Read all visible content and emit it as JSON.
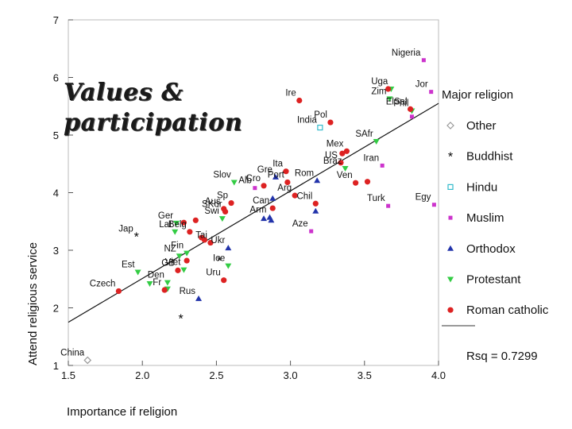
{
  "slide": {
    "title": "Values & participation"
  },
  "chart_data": {
    "type": "scatter",
    "xlabel": "Importance if religion",
    "ylabel": "Attend religious service",
    "xlim": [
      1.5,
      4.0
    ],
    "ylim": [
      1,
      7
    ],
    "xticks": [
      "1.5",
      "2.0",
      "2.5",
      "3.0",
      "3.5",
      "4.0"
    ],
    "yticks": [
      "1",
      "2",
      "3",
      "4",
      "5",
      "6",
      "7"
    ],
    "legend_title": "Major religion",
    "legend_position": "right",
    "fit_line": {
      "x": [
        1.5,
        4.0
      ],
      "y": [
        1.75,
        5.55
      ]
    },
    "rsq_label": "Rsq = 0.7299",
    "groups": [
      {
        "name": "Other",
        "color": "#999999",
        "marker": "diamond"
      },
      {
        "name": "Buddhist",
        "color": "#000000",
        "marker": "asterisk"
      },
      {
        "name": "Hindu",
        "color": "#33bbcc",
        "marker": "square-open"
      },
      {
        "name": "Muslim",
        "color": "#cc33cc",
        "marker": "square"
      },
      {
        "name": "Orthodox",
        "color": "#2233aa",
        "marker": "triangle"
      },
      {
        "name": "Protestant",
        "color": "#33cc44",
        "marker": "triangle-down"
      },
      {
        "name": "Roman catholic",
        "color": "#dd2222",
        "marker": "circle"
      }
    ],
    "points": [
      {
        "label": "China",
        "x": 1.63,
        "y": 1.09,
        "group": "Other"
      },
      {
        "label": "Jap",
        "x": 1.96,
        "y": 3.24,
        "group": "Buddhist"
      },
      {
        "label": "",
        "x": 2.26,
        "y": 1.82,
        "group": "Buddhist"
      },
      {
        "label": "",
        "x": 2.52,
        "y": 2.83,
        "group": "Buddhist"
      },
      {
        "label": "India",
        "x": 3.2,
        "y": 5.13,
        "group": "Hindu"
      },
      {
        "label": "Nigeria",
        "x": 3.9,
        "y": 6.3,
        "group": "Muslim"
      },
      {
        "label": "Jor",
        "x": 3.95,
        "y": 5.75,
        "group": "Muslim"
      },
      {
        "label": "",
        "x": 3.82,
        "y": 5.32,
        "group": "Muslim"
      },
      {
        "label": "Iran",
        "x": 3.62,
        "y": 4.47,
        "group": "Muslim"
      },
      {
        "label": "Turk",
        "x": 3.66,
        "y": 3.77,
        "group": "Muslim"
      },
      {
        "label": "Egy",
        "x": 3.97,
        "y": 3.79,
        "group": "Muslim"
      },
      {
        "label": "Alb",
        "x": 2.76,
        "y": 4.08,
        "group": "Muslim"
      },
      {
        "label": "Aze",
        "x": 3.14,
        "y": 3.33,
        "group": "Muslim"
      },
      {
        "label": "Rus",
        "x": 2.38,
        "y": 2.16,
        "group": "Orthodox"
      },
      {
        "label": "Ukr",
        "x": 2.58,
        "y": 3.04,
        "group": "Orthodox"
      },
      {
        "label": "",
        "x": 2.87,
        "y": 3.52,
        "group": "Orthodox"
      },
      {
        "label": "",
        "x": 2.82,
        "y": 3.55,
        "group": "Orthodox"
      },
      {
        "label": "Arm",
        "x": 2.86,
        "y": 3.57,
        "group": "Orthodox"
      },
      {
        "label": "Gre",
        "x": 2.9,
        "y": 4.27,
        "group": "Orthodox"
      },
      {
        "label": "Rom",
        "x": 3.18,
        "y": 4.21,
        "group": "Orthodox"
      },
      {
        "label": "",
        "x": 3.17,
        "y": 3.68,
        "group": "Orthodox"
      },
      {
        "label": "",
        "x": 2.88,
        "y": 3.9,
        "group": "Orthodox"
      },
      {
        "label": "Est",
        "x": 1.97,
        "y": 2.62,
        "group": "Protestant"
      },
      {
        "label": "",
        "x": 2.05,
        "y": 2.42,
        "group": "Protestant"
      },
      {
        "label": "Den",
        "x": 2.17,
        "y": 2.44,
        "group": "Protestant"
      },
      {
        "label": "",
        "x": 2.17,
        "y": 2.33,
        "group": "Protestant"
      },
      {
        "label": "Viet",
        "x": 2.28,
        "y": 2.66,
        "group": "Protestant"
      },
      {
        "label": "Lat",
        "x": 2.22,
        "y": 3.32,
        "group": "Protestant"
      },
      {
        "label": "Fin",
        "x": 2.3,
        "y": 2.95,
        "group": "Protestant"
      },
      {
        "label": "NZ",
        "x": 2.25,
        "y": 2.9,
        "group": "Protestant"
      },
      {
        "label": "Ice",
        "x": 2.58,
        "y": 2.73,
        "group": "Protestant"
      },
      {
        "label": "Swi",
        "x": 2.54,
        "y": 3.55,
        "group": "Protestant"
      },
      {
        "label": "Ger",
        "x": 2.23,
        "y": 3.47,
        "group": "Protestant"
      },
      {
        "label": "Slov",
        "x": 2.62,
        "y": 4.18,
        "group": "Protestant"
      },
      {
        "label": "SAfr",
        "x": 3.58,
        "y": 4.89,
        "group": "Protestant"
      },
      {
        "label": "Zim",
        "x": 3.67,
        "y": 5.63,
        "group": "Protestant"
      },
      {
        "label": "Phil",
        "x": 3.82,
        "y": 5.42,
        "group": "Protestant"
      },
      {
        "label": "Uga",
        "x": 3.68,
        "y": 5.8,
        "group": "Protestant"
      },
      {
        "label": "Braz",
        "x": 3.37,
        "y": 4.42,
        "group": "Protestant"
      },
      {
        "label": "Czech",
        "x": 1.84,
        "y": 2.29,
        "group": "Roman catholic"
      },
      {
        "label": "Fr",
        "x": 2.15,
        "y": 2.31,
        "group": "Roman catholic"
      },
      {
        "label": "GB",
        "x": 2.24,
        "y": 2.65,
        "group": "Roman catholic"
      },
      {
        "label": "",
        "x": 2.3,
        "y": 2.82,
        "group": "Roman catholic"
      },
      {
        "label": "Belg",
        "x": 2.32,
        "y": 3.32,
        "group": "Roman catholic"
      },
      {
        "label": "",
        "x": 2.36,
        "y": 3.52,
        "group": "Roman catholic"
      },
      {
        "label": "",
        "x": 2.28,
        "y": 3.48,
        "group": "Roman catholic"
      },
      {
        "label": "",
        "x": 2.4,
        "y": 3.22,
        "group": "Roman catholic"
      },
      {
        "label": "",
        "x": 2.42,
        "y": 3.18,
        "group": "Roman catholic"
      },
      {
        "label": "Tai",
        "x": 2.46,
        "y": 3.13,
        "group": "Roman catholic"
      },
      {
        "label": "Uru",
        "x": 2.55,
        "y": 2.48,
        "group": "Roman catholic"
      },
      {
        "label": "Aus",
        "x": 2.55,
        "y": 3.72,
        "group": "Roman catholic"
      },
      {
        "label": "Sp",
        "x": 2.6,
        "y": 3.82,
        "group": "Roman catholic"
      },
      {
        "label": "SKor",
        "x": 2.56,
        "y": 3.67,
        "group": "Roman catholic"
      },
      {
        "label": "Cro",
        "x": 2.82,
        "y": 4.12,
        "group": "Roman catholic"
      },
      {
        "label": "Can",
        "x": 2.88,
        "y": 3.73,
        "group": "Roman catholic"
      },
      {
        "label": "Port",
        "x": 2.98,
        "y": 4.18,
        "group": "Roman catholic"
      },
      {
        "label": "Arg",
        "x": 3.03,
        "y": 3.95,
        "group": "Roman catholic"
      },
      {
        "label": "Ita",
        "x": 2.97,
        "y": 4.37,
        "group": "Roman catholic"
      },
      {
        "label": "Chil",
        "x": 3.17,
        "y": 3.81,
        "group": "Roman catholic"
      },
      {
        "label": "Ire",
        "x": 3.06,
        "y": 5.6,
        "group": "Roman catholic"
      },
      {
        "label": "Pol",
        "x": 3.27,
        "y": 5.22,
        "group": "Roman catholic"
      },
      {
        "label": "Mex",
        "x": 3.38,
        "y": 4.72,
        "group": "Roman catholic"
      },
      {
        "label": "",
        "x": 3.35,
        "y": 4.68,
        "group": "Roman catholic"
      },
      {
        "label": "US",
        "x": 3.34,
        "y": 4.52,
        "group": "Roman catholic"
      },
      {
        "label": "Ven",
        "x": 3.44,
        "y": 4.17,
        "group": "Roman catholic"
      },
      {
        "label": "",
        "x": 3.52,
        "y": 4.19,
        "group": "Roman catholic"
      },
      {
        "label": "ElSal",
        "x": 3.81,
        "y": 5.45,
        "group": "Roman catholic"
      },
      {
        "label": "",
        "x": 3.66,
        "y": 5.8,
        "group": "Roman catholic"
      }
    ]
  }
}
